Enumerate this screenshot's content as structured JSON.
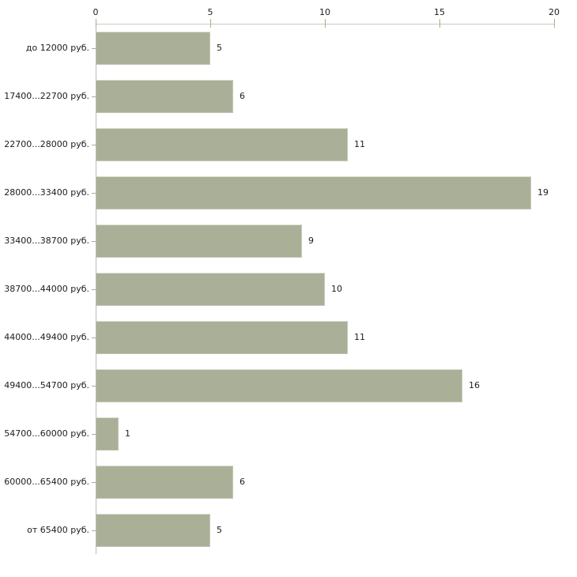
{
  "chart_data": {
    "type": "bar",
    "orientation": "horizontal",
    "title": "",
    "xlabel": "",
    "ylabel": "",
    "categories": [
      "до 12000 руб.",
      "17400...22700 руб.",
      "22700...28000 руб.",
      "28000...33400 руб.",
      "33400...38700 руб.",
      "38700...44000 руб.",
      "44000...49400 руб.",
      "49400...54700 руб.",
      "54700...60000 руб.",
      "60000...65400 руб.",
      "от 65400 руб."
    ],
    "values": [
      5,
      6,
      11,
      19,
      9,
      10,
      11,
      16,
      1,
      6,
      5
    ],
    "value_labels_shown": true,
    "x_ticks": [
      "0",
      "5",
      "10",
      "15",
      "20"
    ],
    "x_tick_values": [
      0,
      5,
      10,
      15,
      20
    ],
    "xlim": [
      0,
      20
    ],
    "x_axis_position": "top",
    "grid": false,
    "legend": null,
    "colors": {
      "bar_fill": "#aab097",
      "x_axis_line": "#c9c9c6",
      "y_axis_line": "#b9b9b9",
      "tick_mark": "#b2aa7b",
      "text": "#1c1c1c",
      "background": "#ffffff"
    }
  }
}
